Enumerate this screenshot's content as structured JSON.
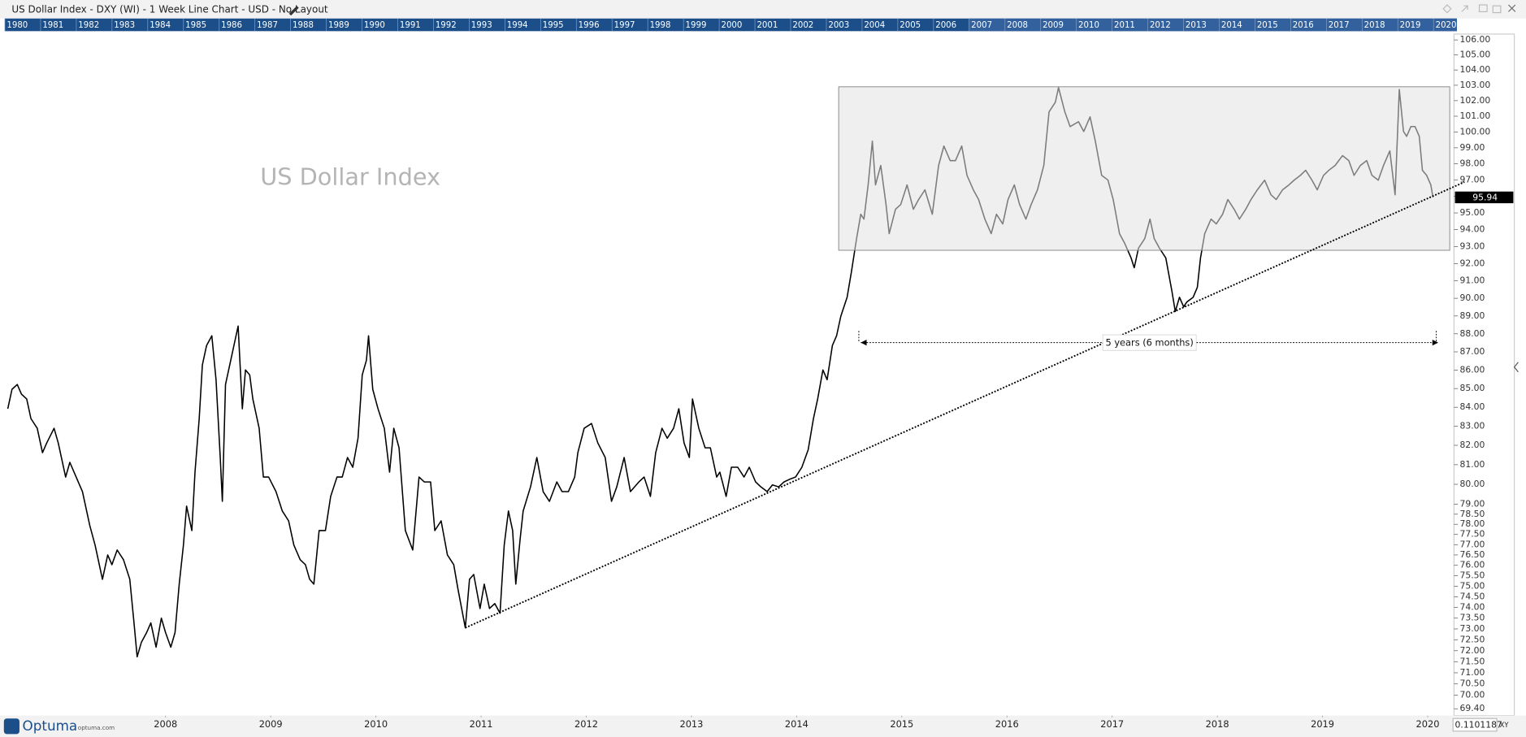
{
  "window": {
    "title": "US Dollar Index - DXY (WI) - 1 Week Line Chart - USD - No Layout",
    "navigator_years": [
      "1980",
      "1981",
      "1982",
      "1983",
      "1984",
      "1985",
      "1986",
      "1987",
      "1988",
      "1989",
      "1990",
      "1991",
      "1992",
      "1993",
      "1994",
      "1995",
      "1996",
      "1997",
      "1998",
      "1999",
      "2000",
      "2001",
      "2002",
      "2003",
      "2004",
      "2005",
      "2006",
      "2007",
      "2008",
      "2009",
      "2010",
      "2011",
      "2012",
      "2013",
      "2014",
      "2015",
      "2016",
      "2017",
      "2018",
      "2019",
      "2020"
    ]
  },
  "footer": {
    "brand": "Optuma",
    "brand_url": "optuma.com",
    "cursor_value": "0.1101187",
    "mode": "XY"
  },
  "chart_data": {
    "type": "line",
    "title": "US Dollar Index",
    "yscale": "log",
    "xlim": [
      2007.0,
      2020.75
    ],
    "ylim": [
      69.4,
      106
    ],
    "xticks": [
      {
        "value": 2008.5,
        "label": "2008"
      },
      {
        "value": 2009.5,
        "label": "2009"
      },
      {
        "value": 2010.5,
        "label": "2010"
      },
      {
        "value": 2011.5,
        "label": "2011"
      },
      {
        "value": 2012.5,
        "label": "2012"
      },
      {
        "value": 2013.5,
        "label": "2013"
      },
      {
        "value": 2014.5,
        "label": "2014"
      },
      {
        "value": 2015.5,
        "label": "2015"
      },
      {
        "value": 2016.5,
        "label": "2016"
      },
      {
        "value": 2017.5,
        "label": "2017"
      },
      {
        "value": 2018.5,
        "label": "2018"
      },
      {
        "value": 2019.5,
        "label": "2019"
      },
      {
        "value": 2020.5,
        "label": "2020"
      }
    ],
    "yticks": [
      {
        "value": 106,
        "label": "106.00"
      },
      {
        "value": 105,
        "label": "105.00"
      },
      {
        "value": 104,
        "label": "104.00"
      },
      {
        "value": 103,
        "label": "103.00"
      },
      {
        "value": 102,
        "label": "102.00"
      },
      {
        "value": 101,
        "label": "101.00"
      },
      {
        "value": 100,
        "label": "100.00"
      },
      {
        "value": 99,
        "label": "99.00"
      },
      {
        "value": 98,
        "label": "98.00"
      },
      {
        "value": 97,
        "label": "97.00"
      },
      {
        "value": 96,
        "label": "96.00"
      },
      {
        "value": 95,
        "label": "95.00"
      },
      {
        "value": 94,
        "label": "94.00"
      },
      {
        "value": 93,
        "label": "93.00"
      },
      {
        "value": 92,
        "label": "92.00"
      },
      {
        "value": 91,
        "label": "91.00"
      },
      {
        "value": 90,
        "label": "90.00"
      },
      {
        "value": 89,
        "label": "89.00"
      },
      {
        "value": 88,
        "label": "88.00"
      },
      {
        "value": 87,
        "label": "87.00"
      },
      {
        "value": 86,
        "label": "86.00"
      },
      {
        "value": 85,
        "label": "85.00"
      },
      {
        "value": 84,
        "label": "84.00"
      },
      {
        "value": 83,
        "label": "83.00"
      },
      {
        "value": 82,
        "label": "82.00"
      },
      {
        "value": 81,
        "label": "81.00"
      },
      {
        "value": 80,
        "label": "80.00"
      },
      {
        "value": 79,
        "label": "79.00"
      },
      {
        "value": 78.5,
        "label": "78.50"
      },
      {
        "value": 78,
        "label": "78.00"
      },
      {
        "value": 77.5,
        "label": "77.50"
      },
      {
        "value": 77,
        "label": "77.00"
      },
      {
        "value": 76.5,
        "label": "76.50"
      },
      {
        "value": 76,
        "label": "76.00"
      },
      {
        "value": 75.5,
        "label": "75.50"
      },
      {
        "value": 75,
        "label": "75.00"
      },
      {
        "value": 74.5,
        "label": "74.50"
      },
      {
        "value": 74,
        "label": "74.00"
      },
      {
        "value": 73.5,
        "label": "73.50"
      },
      {
        "value": 73,
        "label": "73.00"
      },
      {
        "value": 72.5,
        "label": "72.50"
      },
      {
        "value": 72,
        "label": "72.00"
      },
      {
        "value": 71.5,
        "label": "71.50"
      },
      {
        "value": 71,
        "label": "71.00"
      },
      {
        "value": 70.5,
        "label": "70.50"
      },
      {
        "value": 70,
        "label": "70.00"
      },
      {
        "value": 69.4,
        "label": "69.40"
      }
    ],
    "x": [
      2007.0,
      2007.04,
      2007.09,
      2007.13,
      2007.18,
      2007.22,
      2007.28,
      2007.33,
      2007.37,
      2007.44,
      2007.48,
      2007.55,
      2007.59,
      2007.65,
      2007.71,
      2007.78,
      2007.83,
      2007.9,
      2007.95,
      2007.99,
      2008.04,
      2008.1,
      2008.16,
      2008.2,
      2008.23,
      2008.27,
      2008.32,
      2008.36,
      2008.41,
      2008.46,
      2008.5,
      2008.55,
      2008.59,
      2008.63,
      2008.67,
      2008.7,
      2008.75,
      2008.78,
      2008.82,
      2008.85,
      2008.89,
      2008.94,
      2008.98,
      2009.02,
      2009.04,
      2009.07,
      2009.12,
      2009.17,
      2009.19,
      2009.23,
      2009.26,
      2009.3,
      2009.33,
      2009.39,
      2009.43,
      2009.48,
      2009.55,
      2009.61,
      2009.67,
      2009.72,
      2009.78,
      2009.83,
      2009.87,
      2009.91,
      2009.96,
      2010.02,
      2010.07,
      2010.13,
      2010.18,
      2010.23,
      2010.28,
      2010.33,
      2010.37,
      2010.41,
      2010.43,
      2010.47,
      2010.52,
      2010.58,
      2010.63,
      2010.67,
      2010.72,
      2010.78,
      2010.85,
      2010.91,
      2010.96,
      2011.02,
      2011.06,
      2011.12,
      2011.18,
      2011.24,
      2011.28,
      2011.35,
      2011.39,
      2011.43,
      2011.49,
      2011.53,
      2011.58,
      2011.63,
      2011.68,
      2011.72,
      2011.76,
      2011.8,
      2011.83,
      2011.87,
      2011.9,
      2011.97,
      2012.03,
      2012.09,
      2012.15,
      2012.22,
      2012.27,
      2012.33,
      2012.39,
      2012.42,
      2012.48,
      2012.55,
      2012.61,
      2012.68,
      2012.74,
      2012.79,
      2012.86,
      2012.92,
      2013.0,
      2013.05,
      2013.11,
      2013.16,
      2013.22,
      2013.27,
      2013.33,
      2013.38,
      2013.43,
      2013.48,
      2013.51,
      2013.57,
      2013.63,
      2013.68,
      2013.74,
      2013.77,
      2013.83,
      2013.88,
      2013.94,
      2014.0,
      2014.05,
      2014.11,
      2014.16,
      2014.22,
      2014.27,
      2014.33,
      2014.38,
      2014.44,
      2014.49,
      2014.55,
      2014.61,
      2014.66,
      2014.7,
      2014.75,
      2014.79,
      2014.84,
      2014.88,
      2014.92,
      2014.98,
      2015.02,
      2015.07,
      2015.11,
      2015.14,
      2015.18,
      2015.22,
      2015.25,
      2015.3,
      2015.35,
      2015.38,
      2015.44,
      2015.49,
      2015.55,
      2015.61,
      2015.66,
      2015.72,
      2015.79,
      2015.85,
      2015.9,
      2015.96,
      2016.01,
      2016.07,
      2016.12,
      2016.18,
      2016.23,
      2016.29,
      2016.35,
      2016.4,
      2016.46,
      2016.51,
      2016.57,
      2016.62,
      2016.68,
      2016.73,
      2016.79,
      2016.85,
      2016.9,
      2016.96,
      2016.99,
      2017.05,
      2017.1,
      2017.18,
      2017.23,
      2017.29,
      2017.34,
      2017.4,
      2017.46,
      2017.51,
      2017.57,
      2017.62,
      2017.68,
      2017.71,
      2017.75,
      2017.81,
      2017.86,
      2017.9,
      2017.95,
      2018.01,
      2018.07,
      2018.1,
      2018.14,
      2018.18,
      2018.21,
      2018.27,
      2018.31,
      2018.34,
      2018.38,
      2018.44,
      2018.49,
      2018.55,
      2018.6,
      2018.66,
      2018.71,
      2018.77,
      2018.82,
      2018.88,
      2018.95,
      2019.01,
      2019.06,
      2019.12,
      2019.18,
      2019.23,
      2019.29,
      2019.34,
      2019.4,
      2019.45,
      2019.51,
      2019.56,
      2019.62,
      2019.69,
      2019.75,
      2019.8,
      2019.86,
      2019.92,
      2019.97,
      2020.03,
      2020.08,
      2020.14,
      2020.19,
      2020.23,
      2020.27,
      2020.3,
      2020.34,
      2020.38,
      2020.42,
      2020.45,
      2020.49,
      2020.53,
      2020.55
    ],
    "series": [
      {
        "color": "#000000",
        "values": [
          83.92,
          84.96,
          85.22,
          84.7,
          84.44,
          83.4,
          82.89,
          81.62,
          82.12,
          82.89,
          82.12,
          80.37,
          81.12,
          80.37,
          79.63,
          77.93,
          76.98,
          75.33,
          76.5,
          76.03,
          76.74,
          76.27,
          75.33,
          73.28,
          71.72,
          72.38,
          72.83,
          73.28,
          72.16,
          73.5,
          72.83,
          72.16,
          72.83,
          75.1,
          76.98,
          78.9,
          77.69,
          80.62,
          83.4,
          86.28,
          87.35,
          87.89,
          85.48,
          81.37,
          79.14,
          85.22,
          86.54,
          87.89,
          88.43,
          83.92,
          86.01,
          85.74,
          84.44,
          82.89,
          80.37,
          80.37,
          79.63,
          78.66,
          78.17,
          76.98,
          76.27,
          76.03,
          75.33,
          75.1,
          77.69,
          77.69,
          79.39,
          80.37,
          80.37,
          81.37,
          80.87,
          82.37,
          85.74,
          86.54,
          87.89,
          84.96,
          83.92,
          82.89,
          80.62,
          82.89,
          81.87,
          77.69,
          76.74,
          80.37,
          80.12,
          80.12,
          77.69,
          78.17,
          76.5,
          76.03,
          74.87,
          73.05,
          75.33,
          75.56,
          73.95,
          75.1,
          73.95,
          74.18,
          73.73,
          76.98,
          78.66,
          77.69,
          75.1,
          77.21,
          78.66,
          79.87,
          81.37,
          79.63,
          79.14,
          80.12,
          79.63,
          79.63,
          80.37,
          81.62,
          82.89,
          83.14,
          82.12,
          81.37,
          79.14,
          79.87,
          81.37,
          79.63,
          80.12,
          80.37,
          79.39,
          81.62,
          82.89,
          82.37,
          82.89,
          83.92,
          82.12,
          81.37,
          84.44,
          82.89,
          81.87,
          81.87,
          80.37,
          80.62,
          79.39,
          80.87,
          80.87,
          80.37,
          80.87,
          80.12,
          79.87,
          79.63,
          79.97,
          79.87,
          80.12,
          80.27,
          80.37,
          80.87,
          81.77,
          83.4,
          84.44,
          86.01,
          85.48,
          87.35,
          87.89,
          88.98,
          90.06,
          91.48,
          93.47,
          94.92,
          94.63,
          96.7,
          99.42,
          96.7,
          97.9,
          95.51,
          93.76,
          95.22,
          95.51,
          96.7,
          95.22,
          95.81,
          96.4,
          94.92,
          97.9,
          99.11,
          98.2,
          98.2,
          99.11,
          97.29,
          96.4,
          95.81,
          94.63,
          93.76,
          94.92,
          94.34,
          95.81,
          96.7,
          95.51,
          94.63,
          95.51,
          96.4,
          97.9,
          101.28,
          101.9,
          102.85,
          101.28,
          100.34,
          100.65,
          100.03,
          100.96,
          99.42,
          97.29,
          97.0,
          95.81,
          93.76,
          93.18,
          92.33,
          91.76,
          92.9,
          93.47,
          94.63,
          93.47,
          92.9,
          92.33,
          90.34,
          89.25,
          90.06,
          89.52,
          89.79,
          90.06,
          90.63,
          92.33,
          93.76,
          94.63,
          94.34,
          94.92,
          95.81,
          95.22,
          94.63,
          95.22,
          95.81,
          96.4,
          96.99,
          96.1,
          95.81,
          96.4,
          96.7,
          96.99,
          97.29,
          97.6,
          96.99,
          96.4,
          97.29,
          97.6,
          97.9,
          98.51,
          98.2,
          97.29,
          97.9,
          98.2,
          97.29,
          96.99,
          97.9,
          98.81,
          96.1,
          102.72,
          100.03,
          99.72,
          100.34,
          100.34,
          99.72,
          97.6,
          97.29,
          96.7,
          95.94
        ]
      }
    ],
    "box": {
      "x": [
        2014.9,
        2020.71
      ],
      "y": [
        92.78,
        102.9
      ],
      "fill": "rgba(225,225,225,0.55)",
      "stroke": "#888888"
    },
    "trendline": {
      "x": [
        2011.35,
        2020.85
      ],
      "y": [
        73.05,
        96.88
      ]
    },
    "measure": {
      "label": "5 years (6 months)",
      "x": [
        2015.11,
        2020.6
      ],
      "y": 87.51
    }
  }
}
